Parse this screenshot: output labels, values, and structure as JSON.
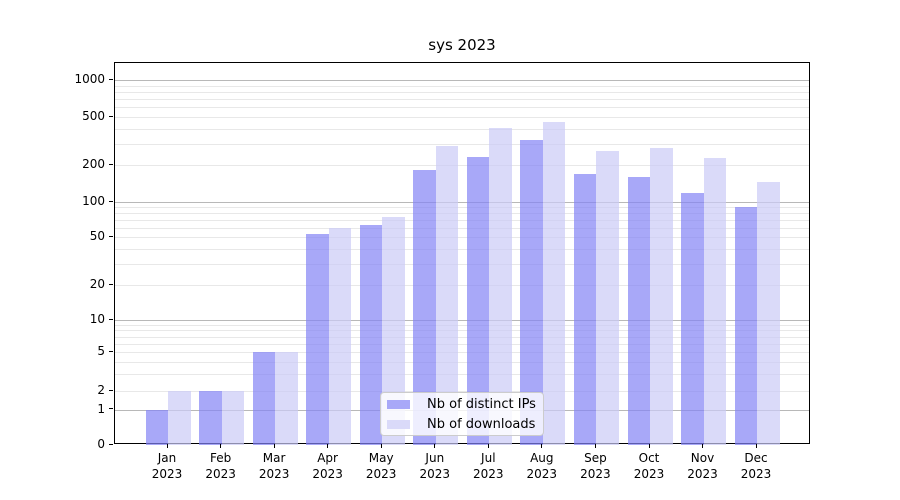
{
  "title": "sys 2023",
  "chart_data": {
    "type": "bar",
    "title": "sys 2023",
    "yscale": "symlog",
    "grid": true,
    "legend_position": "lower-center",
    "categories": [
      "Jan 2023",
      "Feb 2023",
      "Mar 2023",
      "Apr 2023",
      "May 2023",
      "Jun 2023",
      "Jul 2023",
      "Aug 2023",
      "Sep 2023",
      "Oct 2023",
      "Nov 2023",
      "Dec 2023"
    ],
    "series": [
      {
        "name": "Nb of distinct IPs",
        "color": "#a8a8f8",
        "values": [
          1,
          2,
          5,
          53,
          64,
          183,
          234,
          322,
          170,
          162,
          119,
          90
        ]
      },
      {
        "name": "Nb of downloads",
        "color": "#dadaf9",
        "values": [
          2,
          2,
          5,
          60,
          74,
          291,
          404,
          459,
          262,
          278,
          230,
          146
        ]
      }
    ],
    "y_ticks": [
      0,
      1,
      2,
      5,
      10,
      20,
      50,
      100,
      200,
      500,
      1000
    ],
    "y_tick_labels": [
      "0",
      "1",
      "2",
      "5",
      "10",
      "20",
      "50",
      "100",
      "200",
      "500",
      "1000"
    ],
    "ylim": [
      0,
      1400
    ]
  }
}
